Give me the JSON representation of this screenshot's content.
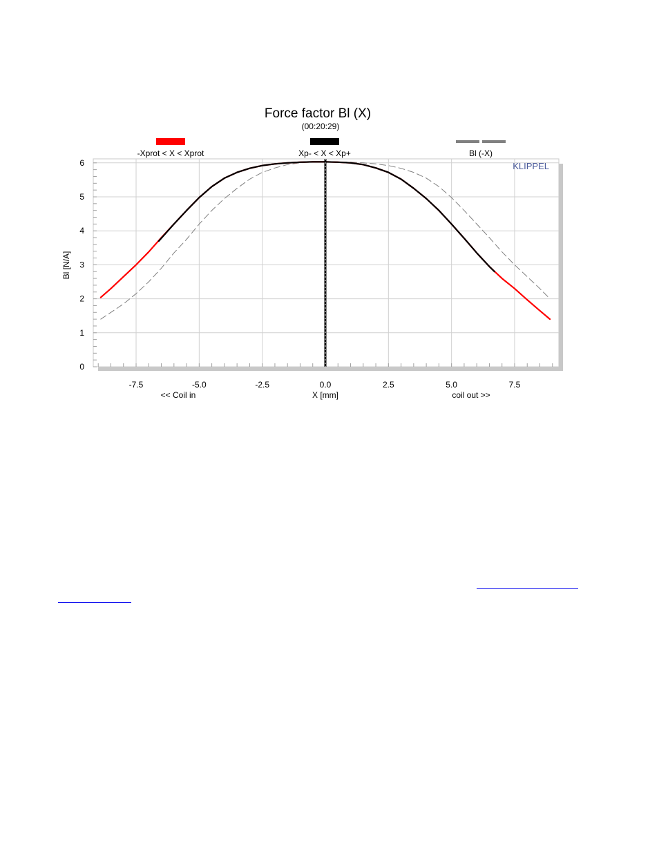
{
  "chart_data": {
    "type": "line",
    "title": "Force factor Bl (X)",
    "subtitle": "(00:20:29)",
    "xlabel": "X [mm]",
    "xlabel_left": "<< Coil in",
    "xlabel_right": "coil out >>",
    "ylabel": "Bl [N/A]",
    "watermark": "KLIPPEL",
    "xlim": [
      -9.1,
      9.5
    ],
    "ylim": [
      0,
      6.1
    ],
    "x_ticks": [
      -7.5,
      -5.0,
      -2.5,
      0.0,
      2.5,
      5.0,
      7.5
    ],
    "x_tick_labels": [
      "-7.5",
      "-5.0",
      "-2.5",
      "0.0",
      "2.5",
      "5.0",
      "7.5"
    ],
    "y_ticks": [
      0,
      1,
      2,
      3,
      4,
      5,
      6
    ],
    "y_tick_labels": [
      "0",
      "1",
      "2",
      "3",
      "4",
      "5",
      "6"
    ],
    "grid": true,
    "legend": [
      {
        "label": "-Xprot < X < Xprot",
        "color": "#ff0000",
        "style": "solid"
      },
      {
        "label": "Xp- < X < Xp+",
        "color": "#000000",
        "style": "solid"
      },
      {
        "label": "Bl (-X)",
        "color": "#808080",
        "style": "dashed"
      }
    ],
    "legend_placement": "top",
    "series": [
      {
        "color": "#ff0000",
        "style": "solid",
        "x": [
          -8.9,
          -8.5,
          -8.0,
          -7.5,
          -7.0,
          -6.5,
          -6.0,
          -5.5,
          -5.0,
          -4.5,
          -4.0,
          -3.5,
          -3.0,
          -2.5,
          -2.0,
          -1.5,
          -1.0,
          -0.5,
          0.0,
          0.5,
          1.0,
          1.5,
          2.0,
          2.5,
          3.0,
          3.5,
          4.0,
          4.5,
          5.0,
          5.5,
          6.0,
          6.5,
          7.0,
          7.5,
          8.0,
          8.5,
          8.9
        ],
        "y": [
          2.04,
          2.3,
          2.65,
          3.0,
          3.38,
          3.8,
          4.2,
          4.6,
          4.98,
          5.3,
          5.55,
          5.72,
          5.84,
          5.92,
          5.97,
          6.0,
          6.02,
          6.03,
          6.03,
          6.02,
          6.0,
          5.95,
          5.85,
          5.72,
          5.52,
          5.25,
          4.95,
          4.6,
          4.2,
          3.78,
          3.35,
          2.95,
          2.6,
          2.3,
          1.97,
          1.65,
          1.4
        ]
      },
      {
        "color": "#000000",
        "style": "solid",
        "x": [
          -6.6,
          -6.0,
          -5.5,
          -5.0,
          -4.5,
          -4.0,
          -3.5,
          -3.0,
          -2.5,
          -2.0,
          -1.5,
          -1.0,
          -0.5,
          0.0,
          0.5,
          1.0,
          1.5,
          2.0,
          2.5,
          3.0,
          3.5,
          4.0,
          4.5,
          5.0,
          5.5,
          6.0,
          6.5,
          6.7
        ],
        "y": [
          3.7,
          4.2,
          4.6,
          4.98,
          5.3,
          5.55,
          5.72,
          5.84,
          5.92,
          5.97,
          6.0,
          6.02,
          6.03,
          6.03,
          6.02,
          6.0,
          5.95,
          5.85,
          5.72,
          5.52,
          5.25,
          4.95,
          4.6,
          4.2,
          3.78,
          3.35,
          2.95,
          2.8
        ]
      },
      {
        "color": "#808080",
        "style": "dashed",
        "x": [
          -8.9,
          -8.5,
          -8.0,
          -7.5,
          -7.0,
          -6.5,
          -6.0,
          -5.5,
          -5.0,
          -4.5,
          -4.0,
          -3.5,
          -3.0,
          -2.5,
          -2.0,
          -1.5,
          -1.0,
          -0.5,
          0.0,
          0.5,
          1.0,
          1.5,
          2.0,
          2.5,
          3.0,
          3.5,
          4.0,
          4.5,
          5.0,
          5.5,
          6.0,
          6.5,
          7.0,
          7.5,
          8.0,
          8.5,
          8.9
        ],
        "y": [
          1.4,
          1.6,
          1.85,
          2.15,
          2.5,
          2.9,
          3.35,
          3.75,
          4.2,
          4.6,
          4.95,
          5.25,
          5.52,
          5.72,
          5.85,
          5.95,
          6.0,
          6.02,
          6.03,
          6.03,
          6.02,
          6.0,
          5.97,
          5.92,
          5.84,
          5.72,
          5.55,
          5.3,
          4.98,
          4.6,
          4.2,
          3.8,
          3.38,
          3.0,
          2.65,
          2.3,
          2.0
        ]
      }
    ],
    "vertical_marker": {
      "x": 0.0,
      "color": "#000000"
    }
  }
}
